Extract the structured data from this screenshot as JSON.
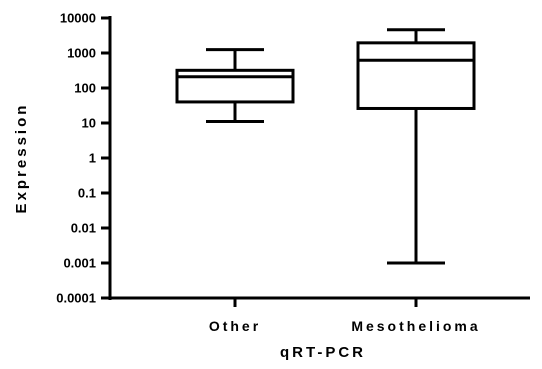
{
  "chart_data": {
    "type": "box",
    "xlabel": "qRT-PCR",
    "ylabel": "Expression",
    "yscale": "log10",
    "ylim": [
      0.0001,
      10000
    ],
    "yticks": [
      "10000",
      "1000",
      "100",
      "10",
      "1",
      "0.1",
      "0.01",
      "0.001",
      "0.0001"
    ],
    "grid": false,
    "categories": [
      "Other",
      "Mesothelioma"
    ],
    "boxes": [
      {
        "category": "Other",
        "min": 11,
        "q1": 40,
        "median": 210,
        "q3": 320,
        "max": 1250
      },
      {
        "category": "Mesothelioma",
        "min": 0.001,
        "q1": 26,
        "median": 620,
        "q3": 1950,
        "max": 4600
      }
    ],
    "colors": {
      "stroke": "#000000",
      "fill": "#ffffff"
    }
  }
}
